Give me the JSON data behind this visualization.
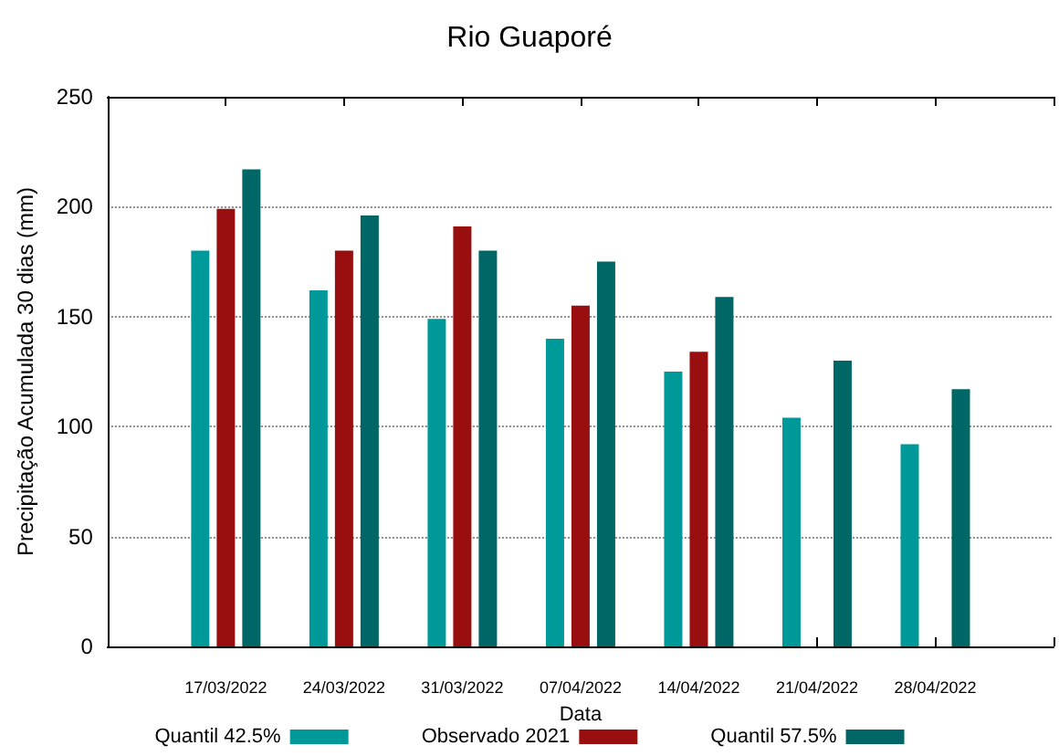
{
  "chart_data": {
    "type": "bar",
    "title": "Rio Guaporé",
    "xlabel": "Data",
    "ylabel": "Precipitação Acumulada 30 dias (mm)",
    "categories": [
      "17/03/2022",
      "24/03/2022",
      "31/03/2022",
      "07/04/2022",
      "14/04/2022",
      "21/04/2022",
      "28/04/2022"
    ],
    "series": [
      {
        "name": "Quantil 42.5%",
        "color": "#009999",
        "values": [
          180,
          162,
          149,
          140,
          125,
          104,
          92
        ]
      },
      {
        "name": "Observado 2021",
        "color": "#990f0f",
        "values": [
          199,
          180,
          191,
          155,
          134,
          null,
          null
        ]
      },
      {
        "name": "Quantil 57.5%",
        "color": "#006666",
        "values": [
          217,
          196,
          180,
          175,
          159,
          130,
          117
        ]
      }
    ],
    "ylim": [
      0,
      250
    ],
    "yticks": [
      0,
      50,
      100,
      150,
      200,
      250
    ],
    "grid": "y",
    "legend": "bottom"
  }
}
